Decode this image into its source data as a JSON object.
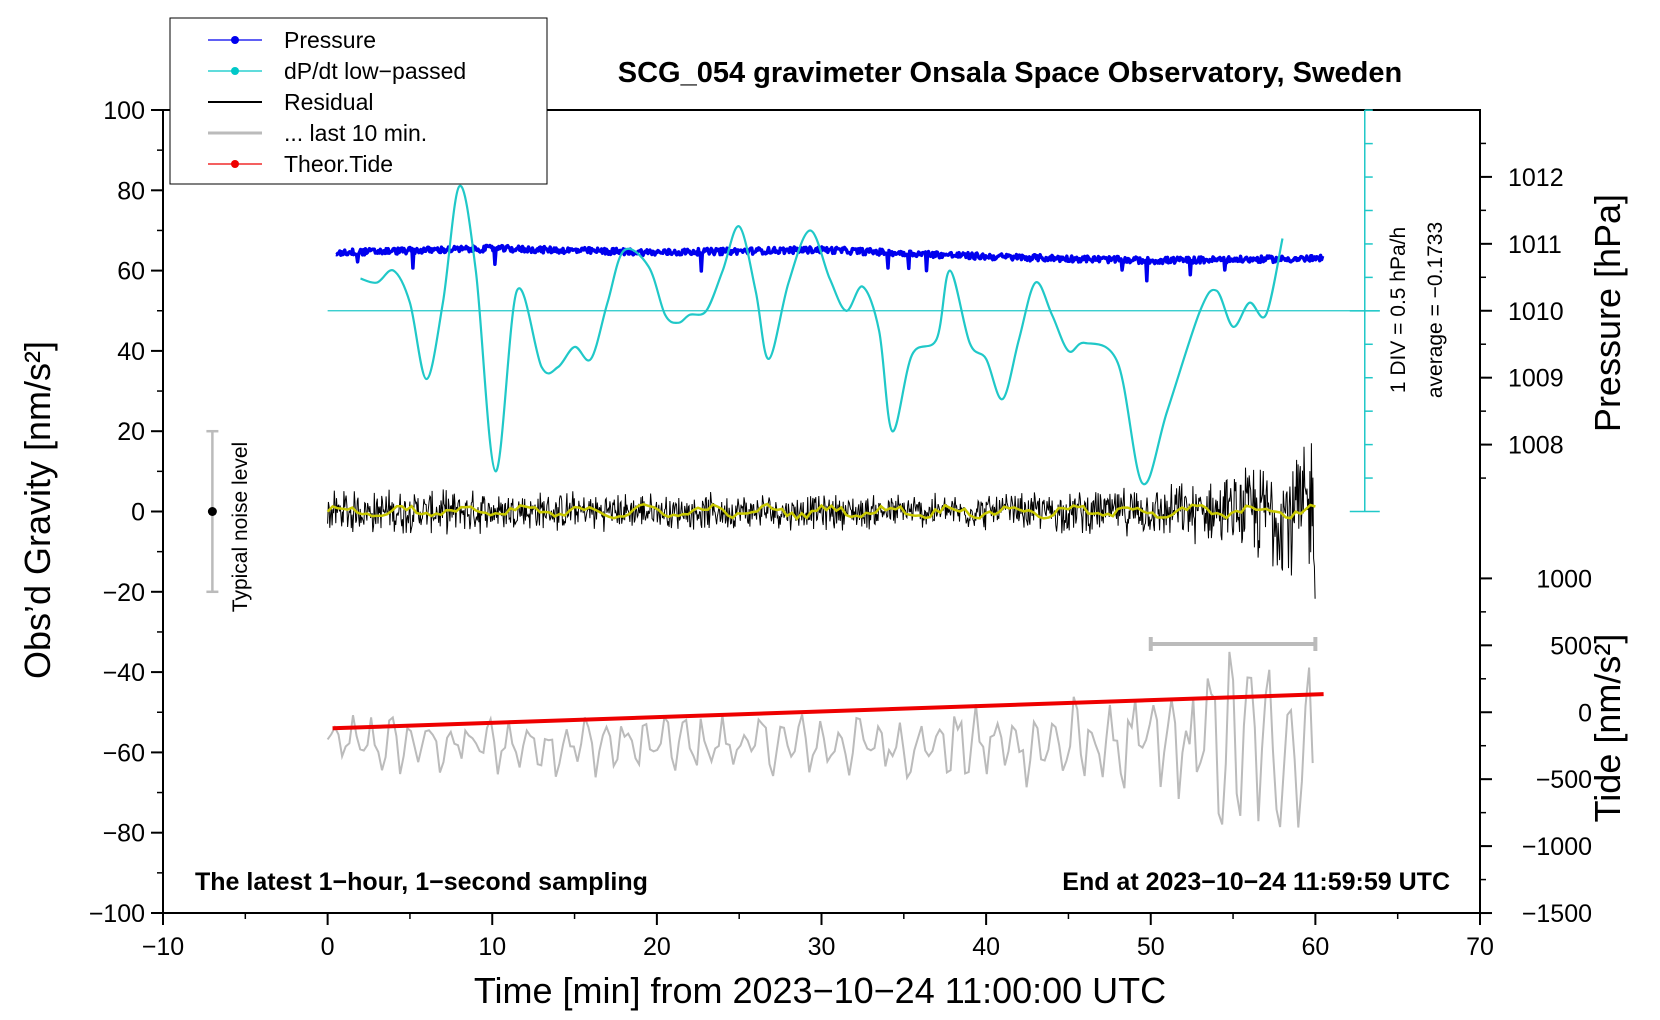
{
  "chart_data": {
    "type": "line",
    "title": "SCG_054 gravimeter Onsala Space Observatory, Sweden",
    "xlabel": "Time [min] from 2023−10−24 11:00:00 UTC",
    "ylabel_left": "Obs’d Gravity [nm/s²]",
    "ylabel_pressure": "Pressure [hPa]",
    "ylabel_tide": "Tide [nm/s²]",
    "xlim": [
      -10,
      70
    ],
    "ylim": [
      -100,
      100
    ],
    "x_ticks": [
      -10,
      0,
      10,
      20,
      30,
      40,
      50,
      60,
      70
    ],
    "x_tick_labels": [
      "−10",
      "0",
      "10",
      "20",
      "30",
      "40",
      "50",
      "60",
      "70"
    ],
    "y_ticks": [
      100,
      80,
      60,
      40,
      20,
      0,
      -20,
      -40,
      -60,
      -80,
      -100
    ],
    "y_tick_labels": [
      "100",
      "80",
      "60",
      "40",
      "20",
      "0",
      "−20",
      "−40",
      "−60",
      "−80",
      "−100"
    ],
    "pressure_axis": {
      "ticks": [
        1012,
        1011,
        1010,
        1009,
        1008
      ],
      "tick_labels": [
        "1012",
        "1011",
        "1010",
        "1009",
        "1008"
      ],
      "map_gravity_at_1010": 50,
      "gravity_per_hPa": 16.67
    },
    "tide_axis": {
      "ticks": [
        1000,
        500,
        0,
        -500,
        -1000,
        -1500
      ],
      "tick_labels": [
        "1000",
        "500",
        "0",
        "−500",
        "−1000",
        "−1500"
      ],
      "map_gravity_at_0": -50,
      "gravity_per_500": 16.67
    },
    "dpdt_scale": {
      "label_div": "1 DIV = 0.5 hPa/h",
      "label_avg": "average = −0.1733",
      "x": 63,
      "y_range": [
        0,
        100
      ],
      "baseline": 50
    },
    "noise_bar": {
      "label": "Typical noise level",
      "x": -7,
      "low": -20,
      "high": 20,
      "center": 0
    },
    "last10_bar": {
      "x_start": 50,
      "x_end": 60,
      "y": -33
    },
    "footnote_left": "The latest 1−hour, 1−second sampling",
    "footnote_right": "End at 2023−10−24 11:59:59 UTC",
    "legend": [
      {
        "label": "Pressure",
        "color": "#0000ee",
        "marker": true
      },
      {
        "label": "dP/dt low−passed",
        "color": "#00c8c8",
        "marker": true
      },
      {
        "label": "Residual",
        "color": "#000000",
        "marker": false
      },
      {
        "label": "... last 10 min.",
        "color": "#bbbbbb",
        "marker": false
      },
      {
        "label": "Theor.Tide",
        "color": "#ee0000",
        "marker": true
      }
    ],
    "series": [
      {
        "name": "dP/dt low-passed",
        "color": "#20c8c8",
        "x": [
          2,
          3,
          4,
          5,
          6,
          7,
          8,
          9,
          10.2,
          11.5,
          13,
          14,
          15,
          16,
          17,
          18,
          19.5,
          20.5,
          21.3,
          22,
          23,
          24,
          25,
          26,
          26.8,
          28,
          29.3,
          30.5,
          31.5,
          32.5,
          33.5,
          34.3,
          35.5,
          37,
          37.8,
          39,
          40,
          41,
          42,
          43,
          44,
          45,
          46,
          48,
          49.5,
          51,
          53,
          54,
          55,
          56,
          57,
          58
        ],
        "y": [
          58,
          57,
          60,
          52,
          33,
          52,
          81,
          60,
          10,
          55,
          36,
          36,
          41,
          38,
          52,
          65,
          61,
          49,
          47,
          49,
          50,
          60,
          71,
          55,
          38,
          57,
          70,
          58,
          50,
          56,
          45,
          20,
          39,
          43,
          60,
          42,
          38,
          28,
          43,
          57,
          49,
          40,
          42,
          37,
          7,
          25,
          50,
          55,
          46,
          52,
          49,
          68
        ]
      },
      {
        "name": "Pressure",
        "color": "#0000ee",
        "x": [
          0.5,
          10,
          20,
          30,
          40,
          50,
          60.5
        ],
        "y": [
          64.5,
          65.5,
          64.5,
          65.2,
          63.5,
          62.5,
          63
        ]
      },
      {
        "name": "Residual",
        "color": "#000000",
        "x": [
          0,
          10,
          20,
          30,
          40,
          50,
          55,
          60
        ],
        "y": [
          0,
          0,
          0,
          0,
          0,
          0,
          0,
          0
        ],
        "envelope": [
          6,
          6,
          5,
          5,
          5,
          7,
          10,
          25
        ]
      },
      {
        "name": "Residual smoothed",
        "color": "#c8c800",
        "x": [
          0,
          60
        ],
        "y": [
          0,
          0
        ]
      },
      {
        "name": "... last 10 min.",
        "color": "#bbbbbb",
        "x": [
          0,
          10,
          20,
          30,
          40,
          50,
          55,
          60
        ],
        "y": [
          -58,
          -58,
          -58,
          -58,
          -58,
          -58,
          -58,
          -58
        ],
        "envelope": [
          8,
          8,
          8,
          8,
          10,
          14,
          25,
          20
        ]
      },
      {
        "name": "Theor.Tide",
        "color": "#ee0000",
        "x": [
          0.3,
          60.5
        ],
        "y": [
          -54,
          -45.5
        ]
      }
    ]
  }
}
